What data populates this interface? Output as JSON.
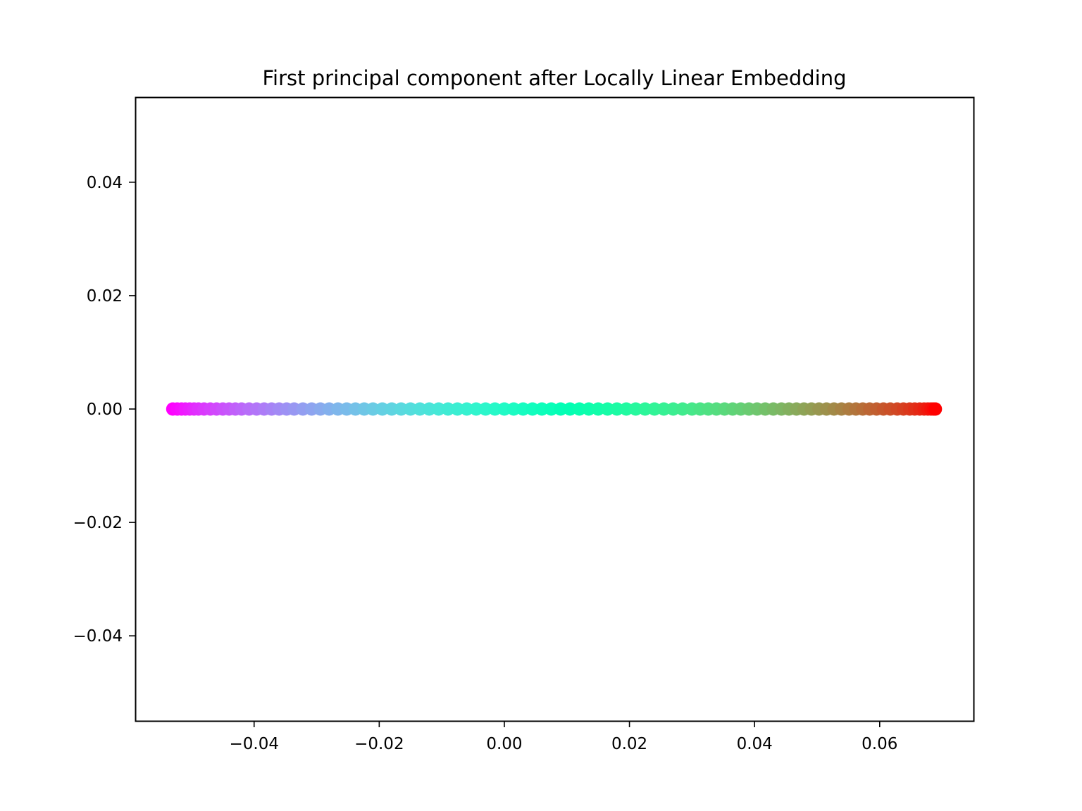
{
  "chart_data": {
    "type": "scatter",
    "title": "First principal component after Locally Linear Embedding",
    "xlabel": "",
    "ylabel": "",
    "xlim": [
      -0.059,
      0.075
    ],
    "ylim": [
      -0.055,
      0.055
    ],
    "x_ticks": [
      {
        "value": -0.04,
        "label": "−0.04"
      },
      {
        "value": -0.02,
        "label": "−0.02"
      },
      {
        "value": 0.0,
        "label": "0.00"
      },
      {
        "value": 0.02,
        "label": "0.02"
      },
      {
        "value": 0.04,
        "label": "0.04"
      },
      {
        "value": 0.06,
        "label": "0.06"
      }
    ],
    "y_ticks": [
      {
        "value": 0.04,
        "label": "0.04"
      },
      {
        "value": 0.02,
        "label": "0.02"
      },
      {
        "value": 0.0,
        "label": "0.00"
      },
      {
        "value": -0.02,
        "label": "−0.02"
      },
      {
        "value": -0.04,
        "label": "−0.04"
      }
    ],
    "colormap": "rainbow",
    "grid": false,
    "legend": false,
    "points": {
      "y_constant": 0.0,
      "x": [
        -0.053,
        -0.0523,
        -0.0516,
        -0.051,
        -0.0503,
        -0.0496,
        -0.0489,
        -0.048,
        -0.047,
        -0.046,
        -0.045,
        -0.044,
        -0.043,
        -0.042,
        -0.0408,
        -0.0396,
        -0.0384,
        -0.0372,
        -0.036,
        -0.0348,
        -0.0336,
        -0.0322,
        -0.0308,
        -0.0294,
        -0.028,
        -0.0266,
        -0.0252,
        -0.0238,
        -0.0224,
        -0.021,
        -0.0195,
        -0.018,
        -0.0165,
        -0.015,
        -0.0135,
        -0.012,
        -0.0105,
        -0.009,
        -0.0075,
        -0.006,
        -0.0045,
        -0.003,
        -0.0015,
        0.0,
        0.0015,
        0.003,
        0.0045,
        0.006,
        0.0075,
        0.009,
        0.0105,
        0.012,
        0.0135,
        0.015,
        0.0165,
        0.018,
        0.0195,
        0.021,
        0.0225,
        0.024,
        0.0255,
        0.027,
        0.0285,
        0.03,
        0.0313,
        0.0326,
        0.0339,
        0.0352,
        0.0365,
        0.0378,
        0.0391,
        0.0404,
        0.0417,
        0.043,
        0.0443,
        0.0455,
        0.0467,
        0.0479,
        0.0491,
        0.0503,
        0.0515,
        0.0527,
        0.0539,
        0.0551,
        0.0562,
        0.0573,
        0.0584,
        0.0595,
        0.0606,
        0.0617,
        0.0628,
        0.0638,
        0.0648,
        0.0656,
        0.0664,
        0.0671,
        0.0677,
        0.0682,
        0.0686,
        0.0689
      ]
    }
  }
}
